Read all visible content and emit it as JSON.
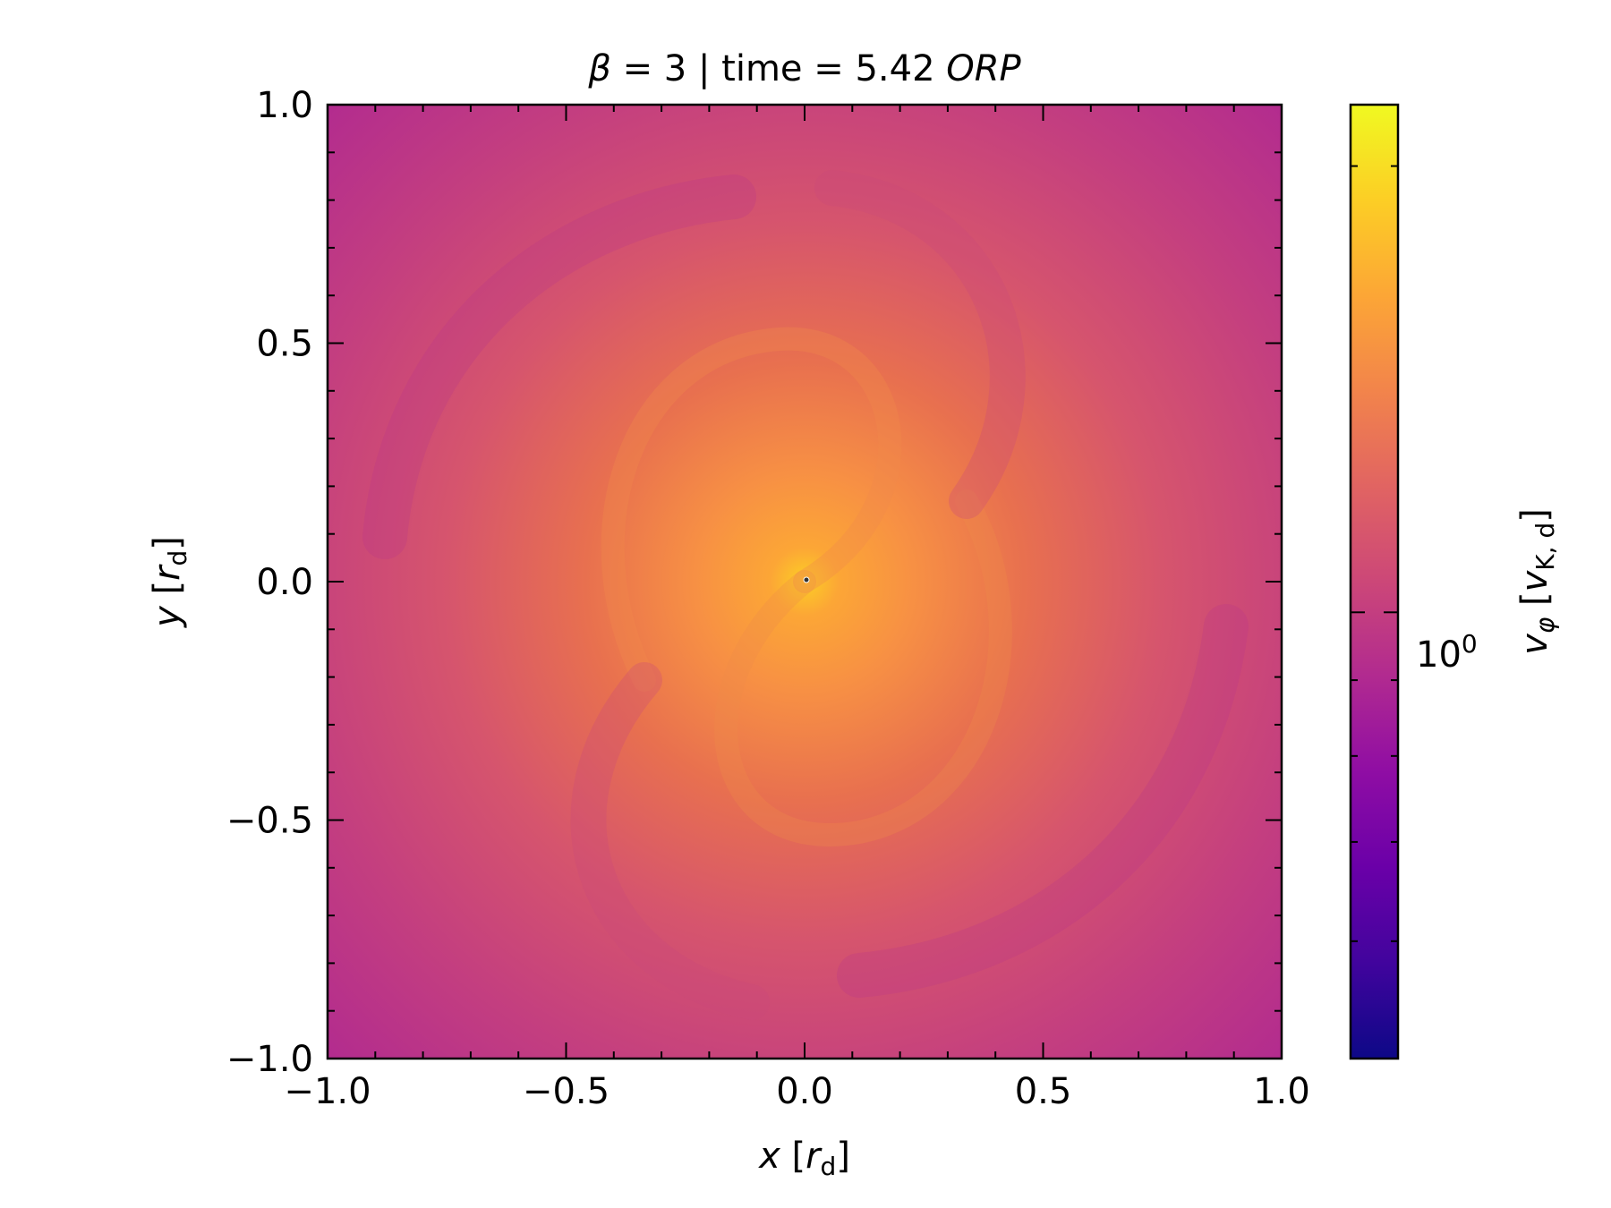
{
  "title": {
    "sym": "β",
    "text": " = 3 | time = 5.42 ",
    "unit": "ORP"
  },
  "xlabel": {
    "var": "x",
    "bracket_open": " [",
    "r": "r",
    "sub": "d",
    "bracket_close": "]"
  },
  "ylabel": {
    "var": "y",
    "bracket_open": " [",
    "r": "r",
    "sub": "d",
    "bracket_close": "]"
  },
  "colorbar": {
    "label_var": "v",
    "label_var_sub": "φ",
    "label_unit_open": " [",
    "label_unit_var": "v",
    "label_unit_sub": "K, d",
    "label_unit_close": "]",
    "colormap": "plasma",
    "scale": "log",
    "major_tick_base": "10",
    "major_tick_exp": "0",
    "major_tick_value": 1.0,
    "range": [
      0.5,
      2.2
    ],
    "minor_ticks": [
      0.6,
      0.7,
      0.8,
      0.9,
      2.0
    ]
  },
  "chart_data": {
    "type": "heatmap",
    "xlim": [
      -1.0,
      1.0
    ],
    "ylim": [
      -1.0,
      1.0
    ],
    "xticks": [
      "−1.0",
      "−0.5",
      "0.0",
      "0.5",
      "1.0"
    ],
    "yticks": [
      "−1.0",
      "−0.5",
      "0.0",
      "0.5",
      "1.0"
    ],
    "xtick_values": [
      -1.0,
      -0.5,
      0.0,
      0.5,
      1.0
    ],
    "ytick_values": [
      -1.0,
      -0.5,
      0.0,
      0.5,
      1.0
    ],
    "minor_step": 0.1,
    "grid": false,
    "field_description_values": {
      "center_value": 1.9,
      "edge_value": 1.0,
      "pattern": "spiral"
    }
  }
}
